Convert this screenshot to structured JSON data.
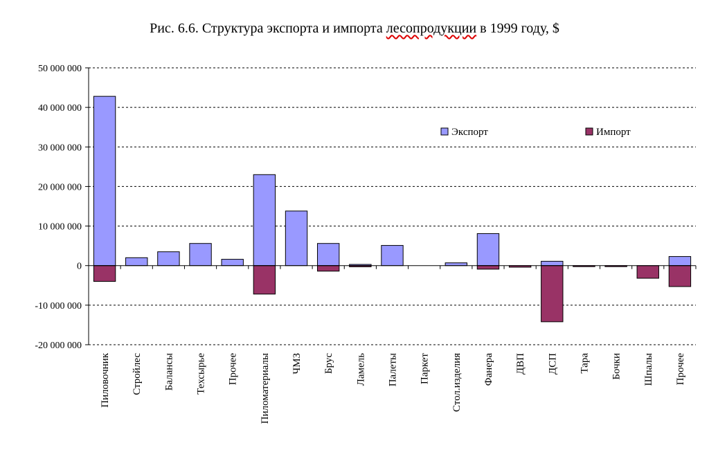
{
  "chart_data": {
    "type": "bar",
    "title": "Рис. 6.6. Структура экспорта и импорта лесопродукции в 1999 году, $",
    "title_misspelled_word": "лесопродукции",
    "xlabel": "",
    "ylabel": "",
    "ylim": [
      -20000000,
      50000000
    ],
    "yticks": [
      50000000,
      40000000,
      30000000,
      20000000,
      10000000,
      0,
      -10000000,
      -20000000
    ],
    "ytick_labels": [
      "50 000 000",
      "40 000 000",
      "30 000 000",
      "20 000 000",
      "10 000 000",
      "0",
      "-10 000 000",
      "-20 000 000"
    ],
    "grid": true,
    "legend_position": "top-right",
    "categories": [
      "Пиловочник",
      "Стройлес",
      "Балансы",
      "Техсырье",
      "Прочее",
      "Пиломатериалы",
      "ЧМЗ",
      "Брус",
      "Ламель",
      "Палеты",
      "Паркет",
      "Стол.изделия",
      "Фанера",
      "ДВП",
      "ДСП",
      "Тара",
      "Бочки",
      "Шпалы",
      "Прочее"
    ],
    "series": [
      {
        "name": "Экспорт",
        "color": "#9999ff",
        "values": [
          42800000,
          2000000,
          3500000,
          5600000,
          1600000,
          23000000,
          13800000,
          5600000,
          300000,
          5100000,
          0,
          700000,
          8100000,
          0,
          1100000,
          0,
          0,
          0,
          2300000
        ]
      },
      {
        "name": "Импорт",
        "color": "#993366",
        "values": [
          -4000000,
          0,
          0,
          0,
          0,
          -7200000,
          0,
          -1400000,
          -300000,
          0,
          0,
          0,
          -900000,
          -400000,
          -14200000,
          -200000,
          -200000,
          -3200000,
          -5300000
        ]
      }
    ]
  }
}
